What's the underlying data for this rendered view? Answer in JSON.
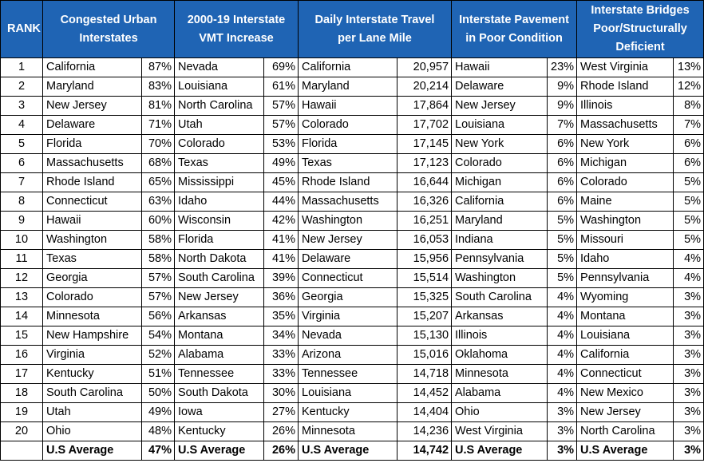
{
  "header": {
    "rank": "RANK",
    "columns": [
      "Congested Urban Interstates",
      "2000-19 Interstate VMT Increase",
      "Daily Interstate Travel per Lane Mile",
      "Interstate Pavement in Poor Condition",
      "Interstate Bridges Poor/Structurally Deficient"
    ]
  },
  "rows": [
    {
      "rank": 1,
      "cells": [
        [
          "California",
          "87%"
        ],
        [
          "Nevada",
          "69%"
        ],
        [
          "California",
          "20,957"
        ],
        [
          "Hawaii",
          "23%"
        ],
        [
          "West Virginia",
          "13%"
        ]
      ]
    },
    {
      "rank": 2,
      "cells": [
        [
          "Maryland",
          "83%"
        ],
        [
          "Louisiana",
          "61%"
        ],
        [
          "Maryland",
          "20,214"
        ],
        [
          "Delaware",
          "9%"
        ],
        [
          "Rhode Island",
          "12%"
        ]
      ]
    },
    {
      "rank": 3,
      "cells": [
        [
          "New Jersey",
          "81%"
        ],
        [
          "North Carolina",
          "57%"
        ],
        [
          "Hawaii",
          "17,864"
        ],
        [
          "New Jersey",
          "9%"
        ],
        [
          "Illinois",
          "8%"
        ]
      ]
    },
    {
      "rank": 4,
      "cells": [
        [
          "Delaware",
          "71%"
        ],
        [
          "Utah",
          "57%"
        ],
        [
          "Colorado",
          "17,702"
        ],
        [
          "Louisiana",
          "7%"
        ],
        [
          "Massachusetts",
          "7%"
        ]
      ]
    },
    {
      "rank": 5,
      "cells": [
        [
          "Florida",
          "70%"
        ],
        [
          "Colorado",
          "53%"
        ],
        [
          "Florida",
          "17,145"
        ],
        [
          "New York",
          "6%"
        ],
        [
          "New York",
          "6%"
        ]
      ]
    },
    {
      "rank": 6,
      "cells": [
        [
          "Massachusetts",
          "68%"
        ],
        [
          "Texas",
          "49%"
        ],
        [
          "Texas",
          "17,123"
        ],
        [
          "Colorado",
          "6%"
        ],
        [
          "Michigan",
          "6%"
        ]
      ]
    },
    {
      "rank": 7,
      "cells": [
        [
          "Rhode Island",
          "65%"
        ],
        [
          "Mississippi",
          "45%"
        ],
        [
          "Rhode Island",
          "16,644"
        ],
        [
          "Michigan",
          "6%"
        ],
        [
          "Colorado",
          "5%"
        ]
      ]
    },
    {
      "rank": 8,
      "cells": [
        [
          "Connecticut",
          "63%"
        ],
        [
          "Idaho",
          "44%"
        ],
        [
          "Massachusetts",
          "16,326"
        ],
        [
          "California",
          "6%"
        ],
        [
          "Maine",
          "5%"
        ]
      ]
    },
    {
      "rank": 9,
      "cells": [
        [
          "Hawaii",
          "60%"
        ],
        [
          "Wisconsin",
          "42%"
        ],
        [
          "Washington",
          "16,251"
        ],
        [
          "Maryland",
          "5%"
        ],
        [
          "Washington",
          "5%"
        ]
      ]
    },
    {
      "rank": 10,
      "cells": [
        [
          "Washington",
          "58%"
        ],
        [
          "Florida",
          "41%"
        ],
        [
          "New Jersey",
          "16,053"
        ],
        [
          "Indiana",
          "5%"
        ],
        [
          "Missouri",
          "5%"
        ]
      ]
    },
    {
      "rank": 11,
      "cells": [
        [
          "Texas",
          "58%"
        ],
        [
          "North Dakota",
          "41%"
        ],
        [
          "Delaware",
          "15,956"
        ],
        [
          "Pennsylvania",
          "5%"
        ],
        [
          "Idaho",
          "4%"
        ]
      ]
    },
    {
      "rank": 12,
      "cells": [
        [
          "Georgia",
          "57%"
        ],
        [
          "South Carolina",
          "39%"
        ],
        [
          "Connecticut",
          "15,514"
        ],
        [
          "Washington",
          "5%"
        ],
        [
          "Pennsylvania",
          "4%"
        ]
      ]
    },
    {
      "rank": 13,
      "cells": [
        [
          "Colorado",
          "57%"
        ],
        [
          "New Jersey",
          "36%"
        ],
        [
          "Georgia",
          "15,325"
        ],
        [
          "South Carolina",
          "4%"
        ],
        [
          "Wyoming",
          "3%"
        ]
      ]
    },
    {
      "rank": 14,
      "cells": [
        [
          "Minnesota",
          "56%"
        ],
        [
          "Arkansas",
          "35%"
        ],
        [
          "Virginia",
          "15,207"
        ],
        [
          "Arkansas",
          "4%"
        ],
        [
          "Montana",
          "3%"
        ]
      ]
    },
    {
      "rank": 15,
      "cells": [
        [
          "New Hampshire",
          "54%"
        ],
        [
          "Montana",
          "34%"
        ],
        [
          "Nevada",
          "15,130"
        ],
        [
          "Illinois",
          "4%"
        ],
        [
          "Louisiana",
          "3%"
        ]
      ]
    },
    {
      "rank": 16,
      "cells": [
        [
          "Virginia",
          "52%"
        ],
        [
          "Alabama",
          "33%"
        ],
        [
          "Arizona",
          "15,016"
        ],
        [
          "Oklahoma",
          "4%"
        ],
        [
          "California",
          "3%"
        ]
      ]
    },
    {
      "rank": 17,
      "cells": [
        [
          "Kentucky",
          "51%"
        ],
        [
          "Tennessee",
          "33%"
        ],
        [
          "Tennessee",
          "14,718"
        ],
        [
          "Minnesota",
          "4%"
        ],
        [
          "Connecticut",
          "3%"
        ]
      ]
    },
    {
      "rank": 18,
      "cells": [
        [
          "South Carolina",
          "50%"
        ],
        [
          "South Dakota",
          "30%"
        ],
        [
          "Louisiana",
          "14,452"
        ],
        [
          "Alabama",
          "4%"
        ],
        [
          "New Mexico",
          "3%"
        ]
      ]
    },
    {
      "rank": 19,
      "cells": [
        [
          "Utah",
          "49%"
        ],
        [
          "Iowa",
          "27%"
        ],
        [
          "Kentucky",
          "14,404"
        ],
        [
          "Ohio",
          "3%"
        ],
        [
          "New Jersey",
          "3%"
        ]
      ]
    },
    {
      "rank": 20,
      "cells": [
        [
          "Ohio",
          "48%"
        ],
        [
          "Kentucky",
          "26%"
        ],
        [
          "Minnesota",
          "14,236"
        ],
        [
          "West Virginia",
          "3%"
        ],
        [
          "North Carolina",
          "3%"
        ]
      ]
    }
  ],
  "footer": [
    [
      "U.S Average",
      "47%"
    ],
    [
      "U.S Average",
      "26%"
    ],
    [
      "U.S Average",
      "14,742"
    ],
    [
      "U.S Average",
      "3%"
    ],
    [
      "U.S Average",
      "3%"
    ]
  ]
}
